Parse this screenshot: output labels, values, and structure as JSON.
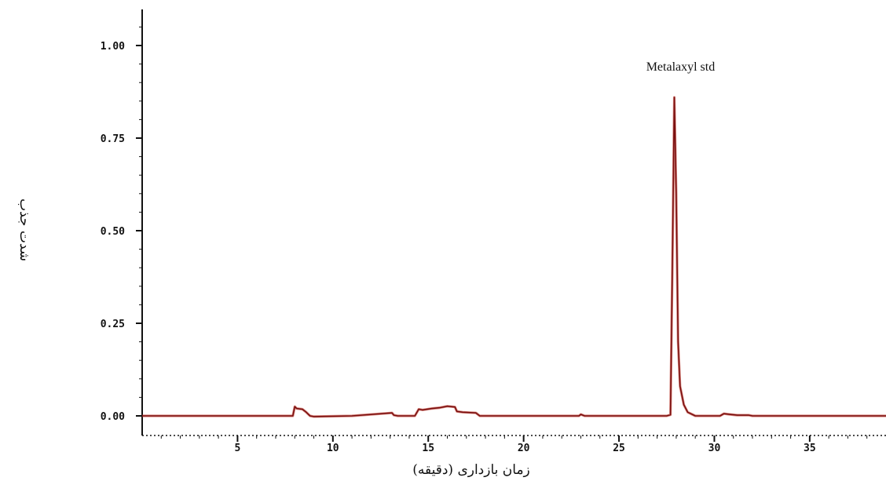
{
  "chart_data": {
    "type": "line",
    "title": "",
    "xlabel": "زمان بازداری (دقیقه)",
    "ylabel": "شدت جذب",
    "xlim": [
      0,
      39
    ],
    "ylim": [
      -0.06,
      1.09
    ],
    "x_ticks": [
      5,
      10,
      15,
      20,
      25,
      30,
      35
    ],
    "x_tick_labels": [
      "5",
      "10",
      "15",
      "20",
      "25",
      "30",
      "35"
    ],
    "y_ticks": [
      0.0,
      0.25,
      0.5,
      0.75,
      1.0
    ],
    "y_tick_labels": [
      "0.00",
      "0.25",
      "0.50",
      "0.75",
      "1.00"
    ],
    "grid": false,
    "colors": {
      "trace": "#7a1010",
      "trace_fill": "#c0392b",
      "axis": "#111111"
    },
    "series": [
      {
        "x": [
          0,
          7.9,
          8.0,
          8.1,
          8.4,
          8.6,
          8.8,
          9.0,
          11.0,
          13.1,
          13.2,
          13.4,
          14.3,
          14.5,
          14.7,
          15.2,
          15.6,
          16.0,
          16.4,
          16.5,
          16.8,
          17.5,
          17.7,
          22.9,
          23.0,
          23.2,
          27.5,
          27.7,
          27.8,
          27.9,
          28.0,
          28.1,
          28.2,
          28.4,
          28.6,
          29.0,
          30.3,
          30.5,
          30.8,
          31.2,
          31.8,
          32.0,
          35.0,
          39.0
        ],
        "y": [
          0.0,
          0.0,
          0.025,
          0.02,
          0.018,
          0.01,
          0.0,
          -0.002,
          0.0,
          0.008,
          0.002,
          0.0,
          0.0,
          0.018,
          0.016,
          0.02,
          0.022,
          0.026,
          0.024,
          0.012,
          0.01,
          0.008,
          0.0,
          0.0,
          0.004,
          0.0,
          0.0,
          0.003,
          0.4,
          0.86,
          0.6,
          0.2,
          0.08,
          0.03,
          0.01,
          0.0,
          0.0,
          0.006,
          0.004,
          0.002,
          0.002,
          0.0,
          0.0,
          0.0
        ]
      }
    ],
    "annotations": [
      {
        "text": "Metalaxyl std",
        "x": 27.9,
        "y": 1.0
      }
    ]
  }
}
